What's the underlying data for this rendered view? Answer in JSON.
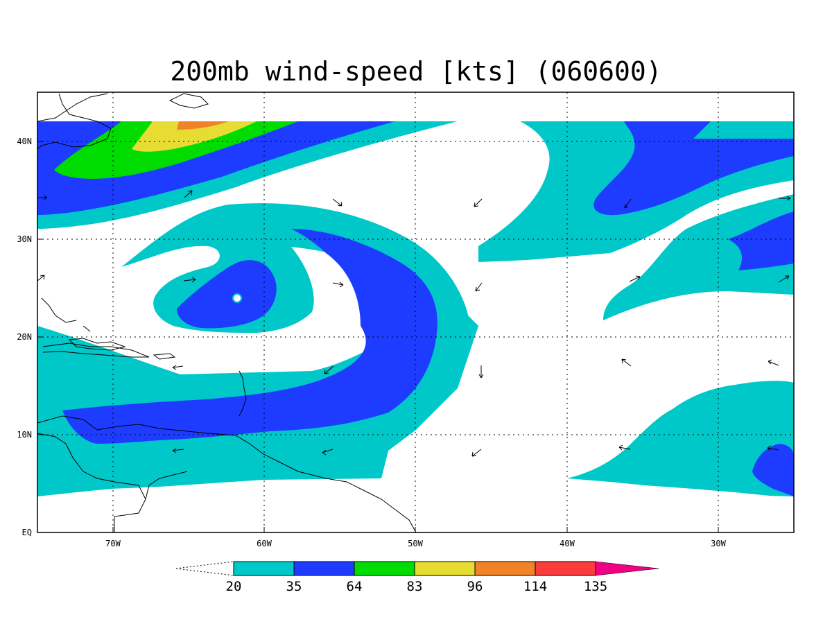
{
  "title": "200mb wind-speed [kts] (060600)",
  "lon_ticks": [
    "70W",
    "60W",
    "50W",
    "40W",
    "30W"
  ],
  "lat_ticks": [
    "EQ",
    "10N",
    "20N",
    "30N",
    "40N"
  ],
  "colorbar": {
    "levels": [
      "20",
      "35",
      "64",
      "83",
      "96",
      "114",
      "135"
    ],
    "colors": [
      "#00c8c8",
      "#1e3cff",
      "#00dc00",
      "#e6dc32",
      "#f08228",
      "#fa3c3c",
      "#f00082"
    ]
  },
  "map_extent": {
    "lon": [
      -75,
      -25
    ],
    "lat": [
      0,
      45
    ]
  }
}
